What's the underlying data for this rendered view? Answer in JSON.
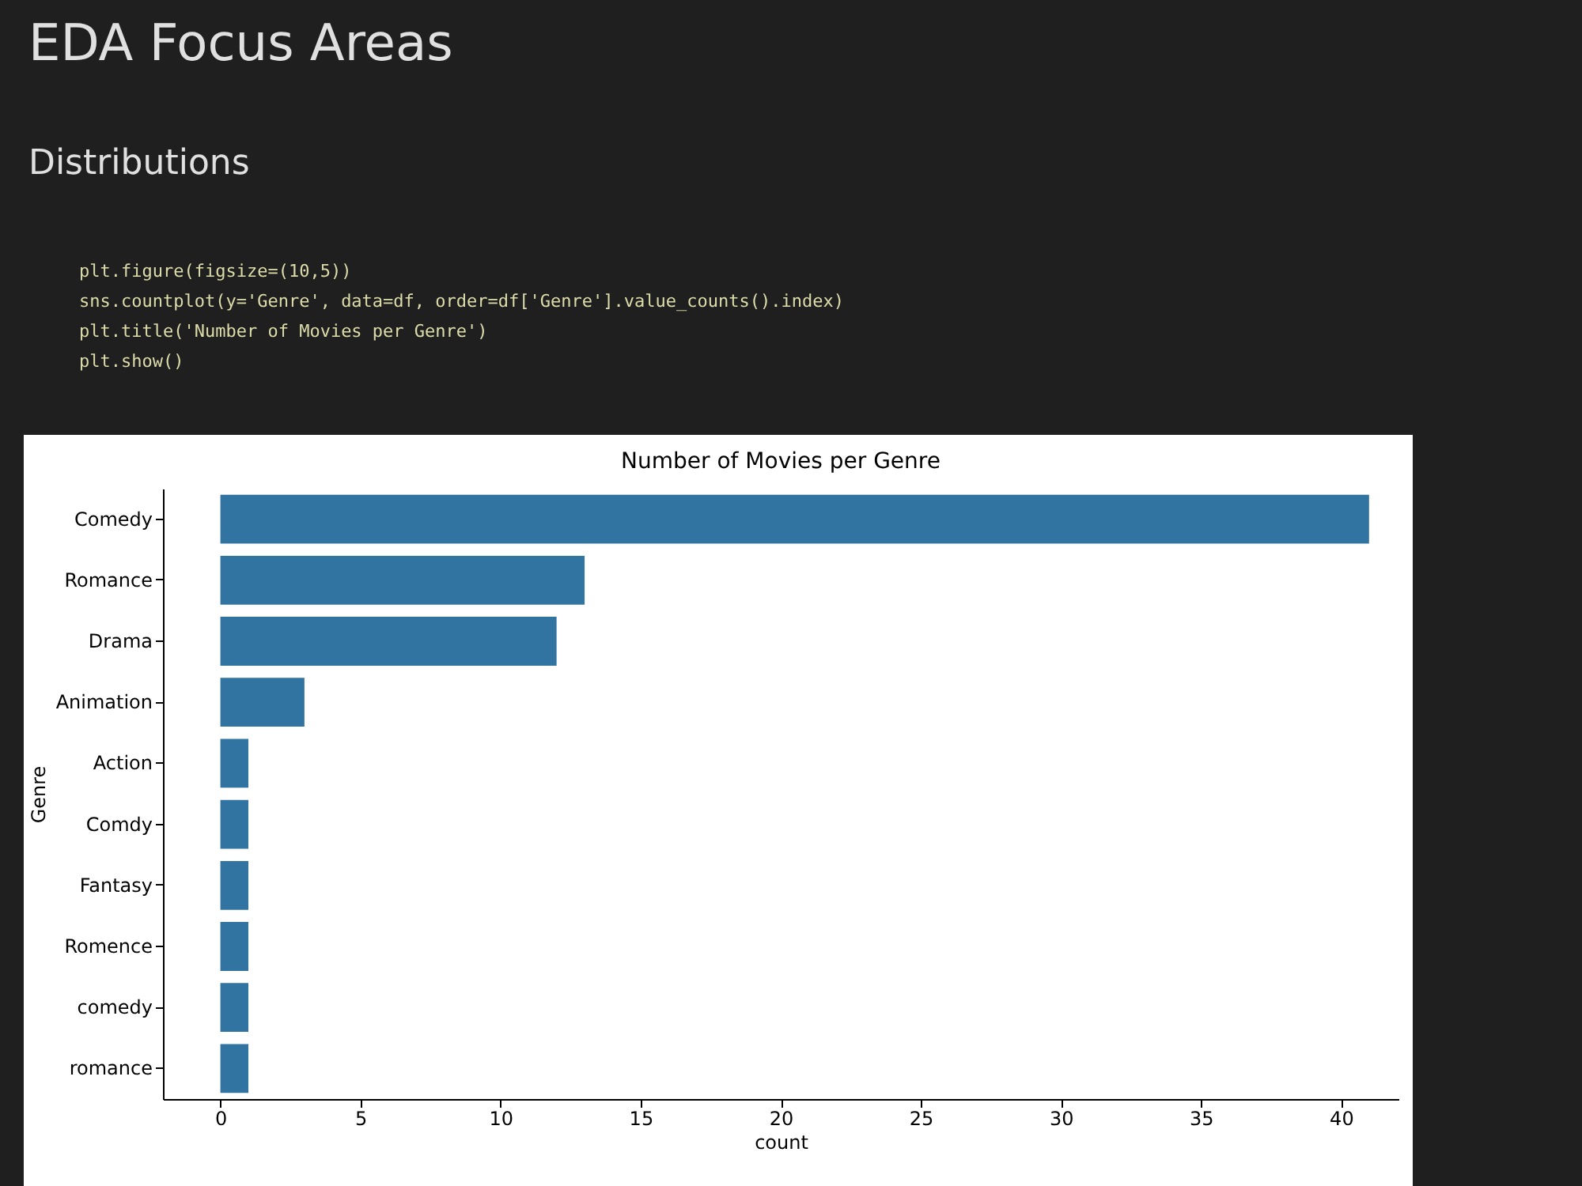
{
  "chart_data": {
    "type": "bar",
    "orientation": "horizontal",
    "title": "Number of Movies per Genre",
    "xlabel": "count",
    "ylabel": "Genre",
    "categories": [
      "Comedy",
      "Romance",
      "Drama",
      "Animation",
      "Action",
      "Comdy",
      "Fantasy",
      "Romence",
      "comedy",
      "romance"
    ],
    "values": [
      41,
      13,
      12,
      3,
      1,
      1,
      1,
      1,
      1,
      1
    ],
    "color": "#3274a1",
    "xlim": [
      -2.05,
      42.05
    ],
    "xticks": [
      0,
      5,
      10,
      15,
      20,
      25,
      30,
      35,
      40
    ],
    "grid": false,
    "annotations": [
      "EDA Focus Areas",
      "Distributions",
      "plt.figure(figsize=(10,5))",
      "sns.countplot(y='Genre', data=df, order=df['Genre'].value_counts().index)",
      "plt.title('Number of Movies per Genre')",
      "plt.show()"
    ]
  }
}
